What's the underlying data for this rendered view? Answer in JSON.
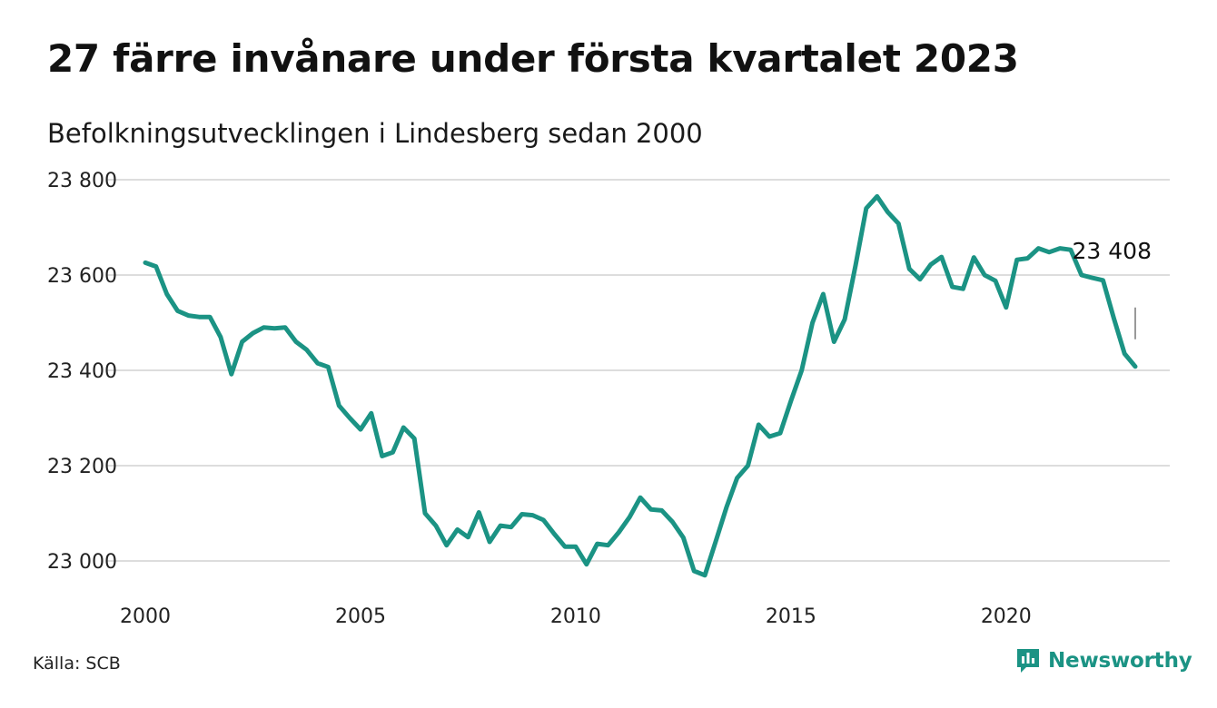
{
  "title": "27 färre invånare under första kvartalet 2023",
  "subtitle": "Befolkningsutvecklingen i Lindesberg sedan 2000",
  "source": "Källa: SCB",
  "brand": {
    "name": "Newsworthy",
    "icon": "newsworthy-logo-icon"
  },
  "colors": {
    "line": "#1b9384",
    "grid": "#dddddd",
    "brand": "#1b9384"
  },
  "chart_data": {
    "type": "line",
    "title": "27 färre invånare under första kvartalet 2023",
    "subtitle": "Befolkningsutvecklingen i Lindesberg sedan 2000",
    "xlabel": "",
    "ylabel": "",
    "xlim": [
      2000,
      2023.5
    ],
    "ylim": [
      22950,
      23800
    ],
    "y_ticks": [
      23000,
      23200,
      23400,
      23600,
      23800
    ],
    "y_tick_labels": [
      "23 000",
      "23 200",
      "23 400",
      "23 600",
      "23 800"
    ],
    "x_ticks": [
      2000,
      2005,
      2010,
      2015,
      2020
    ],
    "x_tick_labels": [
      "2000",
      "2005",
      "2010",
      "2015",
      "2020"
    ],
    "grid": "horizontal",
    "end_label": "23 408",
    "series": [
      {
        "x": [
          2000.0,
          2000.25,
          2000.5,
          2000.75,
          2001.0,
          2001.25,
          2001.5,
          2001.75,
          2002.0,
          2002.25,
          2002.5,
          2002.75,
          2003.0,
          2003.25,
          2003.5,
          2003.75,
          2004.0,
          2004.25,
          2004.5,
          2004.75,
          2005.0,
          2005.25,
          2005.5,
          2005.75,
          2006.0,
          2006.25,
          2006.5,
          2006.75,
          2007.0,
          2007.25,
          2007.5,
          2007.75,
          2008.0,
          2008.25,
          2008.5,
          2008.75,
          2009.0,
          2009.25,
          2009.5,
          2009.75,
          2010.0,
          2010.25,
          2010.5,
          2010.75,
          2011.0,
          2011.25,
          2011.5,
          2011.75,
          2012.0,
          2012.25,
          2012.5,
          2012.75,
          2013.0,
          2013.25,
          2013.5,
          2013.75,
          2014.0,
          2014.25,
          2014.5,
          2014.75,
          2015.0,
          2015.25,
          2015.5,
          2015.75,
          2016.0,
          2016.25,
          2016.5,
          2016.75,
          2017.0,
          2017.25,
          2017.5,
          2017.75,
          2018.0,
          2018.25,
          2018.5,
          2018.75,
          2019.0,
          2019.25,
          2019.5,
          2019.75,
          2020.0,
          2020.25,
          2020.5,
          2020.75,
          2021.0,
          2021.25,
          2021.5,
          2021.75,
          2022.0,
          2022.25,
          2022.5,
          2022.75,
          2023.0
        ],
        "values": [
          23626,
          23618,
          23560,
          23525,
          23515,
          23512,
          23512,
          23470,
          23392,
          23460,
          23478,
          23490,
          23488,
          23490,
          23460,
          23443,
          23415,
          23407,
          23326,
          23300,
          23276,
          23310,
          23220,
          23228,
          23280,
          23257,
          23100,
          23074,
          23033,
          23066,
          23050,
          23102,
          23040,
          23074,
          23071,
          23098,
          23096,
          23086,
          23057,
          23030,
          23030,
          22993,
          23036,
          23033,
          23060,
          23092,
          23133,
          23108,
          23106,
          23082,
          23049,
          22979,
          22970,
          23040,
          23112,
          23174,
          23200,
          23286,
          23261,
          23268,
          23336,
          23400,
          23500,
          23560,
          23460,
          23507,
          23620,
          23740,
          23765,
          23732,
          23708,
          23613,
          23591,
          23622,
          23638,
          23575,
          23571,
          23637,
          23600,
          23588,
          23532,
          23632,
          23635,
          23656,
          23648,
          23656,
          23653,
          23600,
          23594,
          23589,
          23510,
          23435,
          23408
        ]
      }
    ]
  }
}
